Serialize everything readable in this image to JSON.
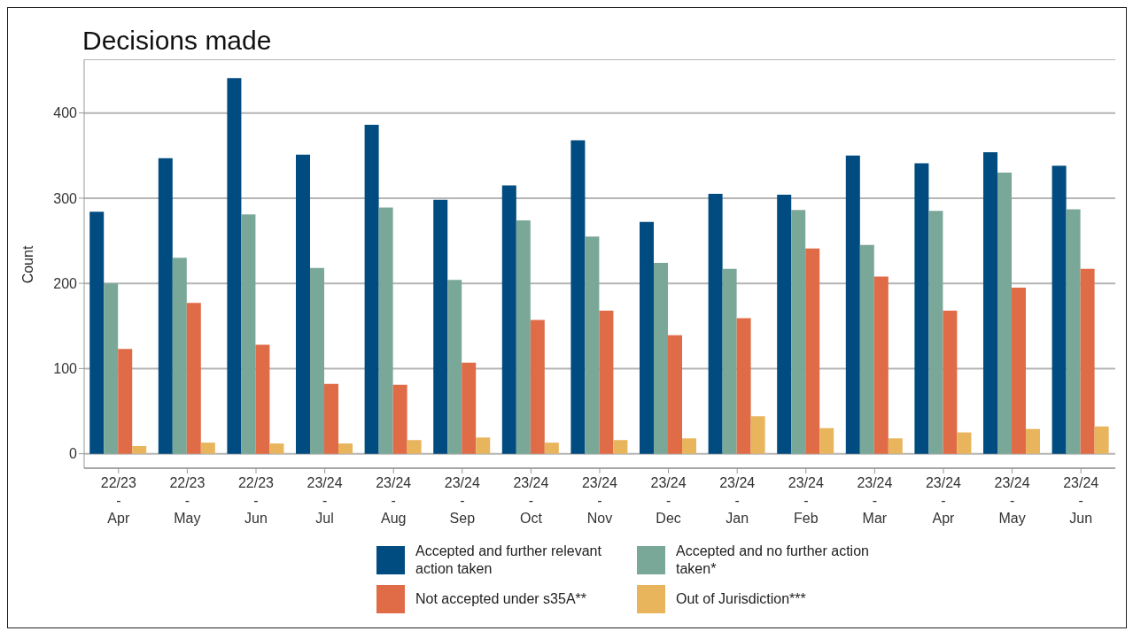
{
  "chart_data": {
    "type": "bar",
    "title": "Decisions made",
    "ylabel": "Count",
    "categories": [
      "22/23\n-\nApr",
      "22/23\n-\nMay",
      "22/23\n-\nJun",
      "23/24\n-\nJul",
      "23/24\n-\nAug",
      "23/24\n-\nSep",
      "23/24\n-\nOct",
      "23/24\n-\nNov",
      "23/24\n-\nDec",
      "23/24\n-\nJan",
      "23/24\n-\nFeb",
      "23/24\n-\nMar",
      "23/24\n-\nApr",
      "23/24\n-\nMay",
      "23/24\n-\nJun"
    ],
    "series": [
      {
        "name": "Accepted and further relevant action taken",
        "color": "#004b7f",
        "values": [
          284,
          347,
          441,
          351,
          386,
          298,
          315,
          368,
          272,
          305,
          304,
          350,
          341,
          354,
          338
        ]
      },
      {
        "name": "Accepted and no further action taken*",
        "color": "#7aa898",
        "values": [
          200,
          230,
          281,
          218,
          289,
          204,
          274,
          255,
          224,
          217,
          286,
          245,
          285,
          330,
          287
        ]
      },
      {
        "name": "Not accepted under s35A**",
        "color": "#e06c47",
        "values": [
          123,
          177,
          128,
          82,
          81,
          107,
          157,
          168,
          139,
          159,
          241,
          208,
          168,
          195,
          217
        ]
      },
      {
        "name": "Out of Jurisdiction***",
        "color": "#e8b45c",
        "values": [
          9,
          13,
          12,
          12,
          16,
          19,
          13,
          16,
          18,
          44,
          30,
          18,
          25,
          29,
          32
        ]
      }
    ],
    "ylim": [
      -17,
      463
    ],
    "yticks": [
      0,
      100,
      200,
      300,
      400
    ],
    "grid": "y",
    "legend": "bottom"
  }
}
